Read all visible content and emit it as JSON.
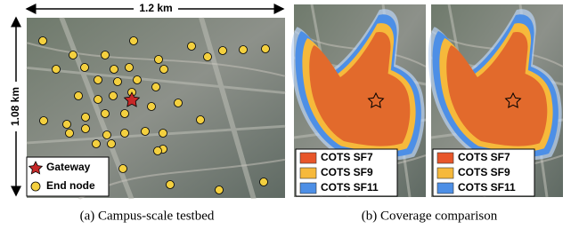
{
  "panel_a": {
    "scale_x": "1.2 km",
    "scale_y": "1.08 km",
    "legend": [
      "Gateway",
      "End node"
    ],
    "caption": "(a) Campus-scale testbed"
  },
  "panel_b": {
    "maps": [
      {
        "legend": [
          "COTS SF7",
          "COTS SF9",
          "COTS SF11"
        ]
      },
      {
        "legend": [
          "COTS SF7",
          "COTS SF9",
          "COTS SF11"
        ]
      }
    ],
    "caption": "(b) Coverage comparison"
  }
}
